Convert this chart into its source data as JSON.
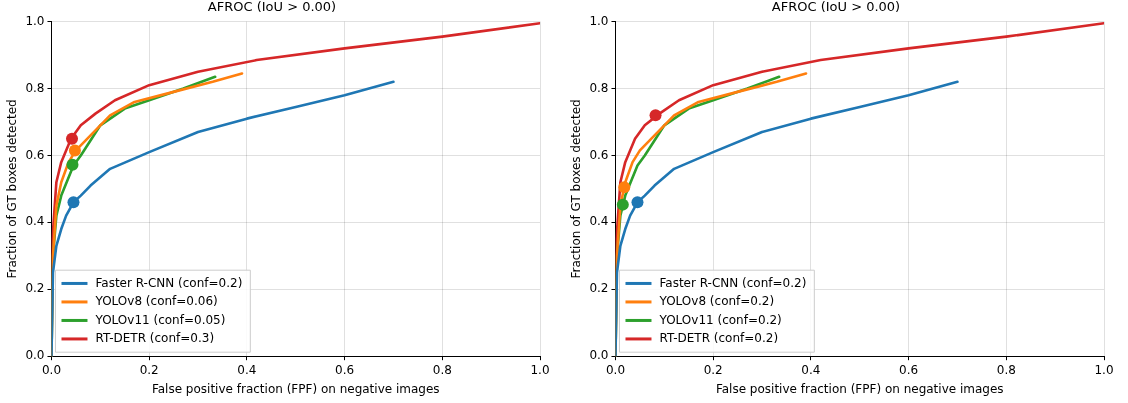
{
  "chart_data": [
    {
      "type": "line",
      "title": "AFROC (IoU > 0.00)",
      "xlabel": "False positive fraction (FPF) on negative images",
      "ylabel": "Fraction of GT boxes detected",
      "xlim": [
        0,
        1
      ],
      "ylim": [
        0,
        1
      ],
      "xticks": [
        {
          "value": 0,
          "label": "0.0"
        },
        {
          "value": 0.2,
          "label": "0.2"
        },
        {
          "value": 0.4,
          "label": "0.4"
        },
        {
          "value": 0.6,
          "label": "0.6"
        },
        {
          "value": 0.8,
          "label": "0.8"
        },
        {
          "value": 1,
          "label": "1.0"
        }
      ],
      "yticks": [
        {
          "value": 0,
          "label": "0.0"
        },
        {
          "value": 0.2,
          "label": "0.2"
        },
        {
          "value": 0.4,
          "label": "0.4"
        },
        {
          "value": 0.6,
          "label": "0.6"
        },
        {
          "value": 0.8,
          "label": "0.8"
        },
        {
          "value": 1,
          "label": "1.0"
        }
      ],
      "grid": true,
      "legend": "bottom left",
      "marker": "none",
      "series": [
        {
          "name": "Faster R-CNN (conf=0.2)",
          "color": "#1f77b4",
          "x": [
            0,
            0.003,
            0.01,
            0.02,
            0.03,
            0.045,
            0.06,
            0.08,
            0.12,
            0.2,
            0.3,
            0.4,
            0.5,
            0.6,
            0.7
          ],
          "values": [
            0,
            0.25,
            0.33,
            0.38,
            0.42,
            0.46,
            0.48,
            0.51,
            0.56,
            0.61,
            0.67,
            0.71,
            0.745,
            0.78,
            0.82
          ]
        },
        {
          "name": "YOLOv8 (conf=0.06)",
          "color": "#ff7f0e",
          "x": [
            0,
            0.003,
            0.01,
            0.02,
            0.035,
            0.05,
            0.08,
            0.12,
            0.17,
            0.25,
            0.33,
            0.39
          ],
          "values": [
            0,
            0.3,
            0.45,
            0.52,
            0.58,
            0.615,
            0.66,
            0.72,
            0.76,
            0.79,
            0.82,
            0.845
          ]
        },
        {
          "name": "YOLOv11 (conf=0.05)",
          "color": "#2ca02c",
          "x": [
            0,
            0.003,
            0.01,
            0.02,
            0.045,
            0.06,
            0.1,
            0.15,
            0.2,
            0.27,
            0.335
          ],
          "values": [
            0,
            0.3,
            0.42,
            0.48,
            0.57,
            0.6,
            0.69,
            0.74,
            0.765,
            0.8,
            0.835
          ]
        },
        {
          "name": "RT-DETR (conf=0.3)",
          "color": "#d62728",
          "x": [
            0,
            0.002,
            0.01,
            0.02,
            0.04,
            0.06,
            0.09,
            0.13,
            0.2,
            0.3,
            0.42,
            0.6,
            0.8,
            1.0
          ],
          "values": [
            0,
            0.35,
            0.52,
            0.58,
            0.65,
            0.69,
            0.725,
            0.765,
            0.81,
            0.85,
            0.885,
            0.92,
            0.955,
            0.995
          ]
        },
        {
          "type": "scatter",
          "marker": "circle",
          "color": "#1f77b4",
          "x": [
            0.045
          ],
          "values": [
            0.46
          ]
        },
        {
          "type": "scatter",
          "marker": "circle",
          "color": "#ff7f0e",
          "x": [
            0.048
          ],
          "values": [
            0.615
          ]
        },
        {
          "type": "scatter",
          "marker": "circle",
          "color": "#2ca02c",
          "x": [
            0.043
          ],
          "values": [
            0.572
          ]
        },
        {
          "type": "scatter",
          "marker": "circle",
          "color": "#d62728",
          "x": [
            0.042
          ],
          "values": [
            0.65
          ]
        }
      ]
    },
    {
      "type": "line",
      "title": "AFROC (IoU > 0.00)",
      "xlabel": "False positive fraction (FPF) on negative images",
      "ylabel": "Fraction of GT boxes detected",
      "xlim": [
        0,
        1
      ],
      "ylim": [
        0,
        1
      ],
      "xticks": [
        {
          "value": 0,
          "label": "0.0"
        },
        {
          "value": 0.2,
          "label": "0.2"
        },
        {
          "value": 0.4,
          "label": "0.4"
        },
        {
          "value": 0.6,
          "label": "0.6"
        },
        {
          "value": 0.8,
          "label": "0.8"
        },
        {
          "value": 1,
          "label": "1.0"
        }
      ],
      "yticks": [
        {
          "value": 0,
          "label": "0.0"
        },
        {
          "value": 0.2,
          "label": "0.2"
        },
        {
          "value": 0.4,
          "label": "0.4"
        },
        {
          "value": 0.6,
          "label": "0.6"
        },
        {
          "value": 0.8,
          "label": "0.8"
        },
        {
          "value": 1,
          "label": "1.0"
        }
      ],
      "grid": true,
      "legend": "bottom left",
      "marker": "none",
      "series": [
        {
          "name": "Faster R-CNN (conf=0.2)",
          "color": "#1f77b4",
          "x": [
            0,
            0.003,
            0.01,
            0.02,
            0.03,
            0.045,
            0.06,
            0.08,
            0.12,
            0.2,
            0.3,
            0.4,
            0.5,
            0.6,
            0.7
          ],
          "values": [
            0,
            0.25,
            0.33,
            0.38,
            0.42,
            0.46,
            0.48,
            0.51,
            0.56,
            0.61,
            0.67,
            0.71,
            0.745,
            0.78,
            0.82
          ]
        },
        {
          "name": "YOLOv8 (conf=0.2)",
          "color": "#ff7f0e",
          "x": [
            0,
            0.003,
            0.01,
            0.02,
            0.035,
            0.05,
            0.08,
            0.12,
            0.17,
            0.25,
            0.33,
            0.39
          ],
          "values": [
            0,
            0.3,
            0.45,
            0.52,
            0.58,
            0.615,
            0.66,
            0.72,
            0.76,
            0.79,
            0.82,
            0.845
          ]
        },
        {
          "name": "YOLOv11 (conf=0.2)",
          "color": "#2ca02c",
          "x": [
            0,
            0.003,
            0.01,
            0.02,
            0.045,
            0.06,
            0.1,
            0.15,
            0.2,
            0.27,
            0.335
          ],
          "values": [
            0,
            0.3,
            0.42,
            0.48,
            0.57,
            0.6,
            0.69,
            0.74,
            0.765,
            0.8,
            0.835
          ]
        },
        {
          "name": "RT-DETR (conf=0.2)",
          "color": "#d62728",
          "x": [
            0,
            0.002,
            0.01,
            0.02,
            0.04,
            0.06,
            0.09,
            0.13,
            0.2,
            0.3,
            0.42,
            0.6,
            0.8,
            1.0
          ],
          "values": [
            0,
            0.35,
            0.52,
            0.58,
            0.65,
            0.69,
            0.725,
            0.765,
            0.81,
            0.85,
            0.885,
            0.92,
            0.955,
            0.995
          ]
        },
        {
          "type": "scatter",
          "marker": "circle",
          "color": "#1f77b4",
          "x": [
            0.045
          ],
          "values": [
            0.46
          ]
        },
        {
          "type": "scatter",
          "marker": "circle",
          "color": "#ff7f0e",
          "x": [
            0.018
          ],
          "values": [
            0.505
          ]
        },
        {
          "type": "scatter",
          "marker": "circle",
          "color": "#2ca02c",
          "x": [
            0.015
          ],
          "values": [
            0.453
          ]
        },
        {
          "type": "scatter",
          "marker": "circle",
          "color": "#d62728",
          "x": [
            0.082
          ],
          "values": [
            0.72
          ]
        }
      ]
    }
  ]
}
